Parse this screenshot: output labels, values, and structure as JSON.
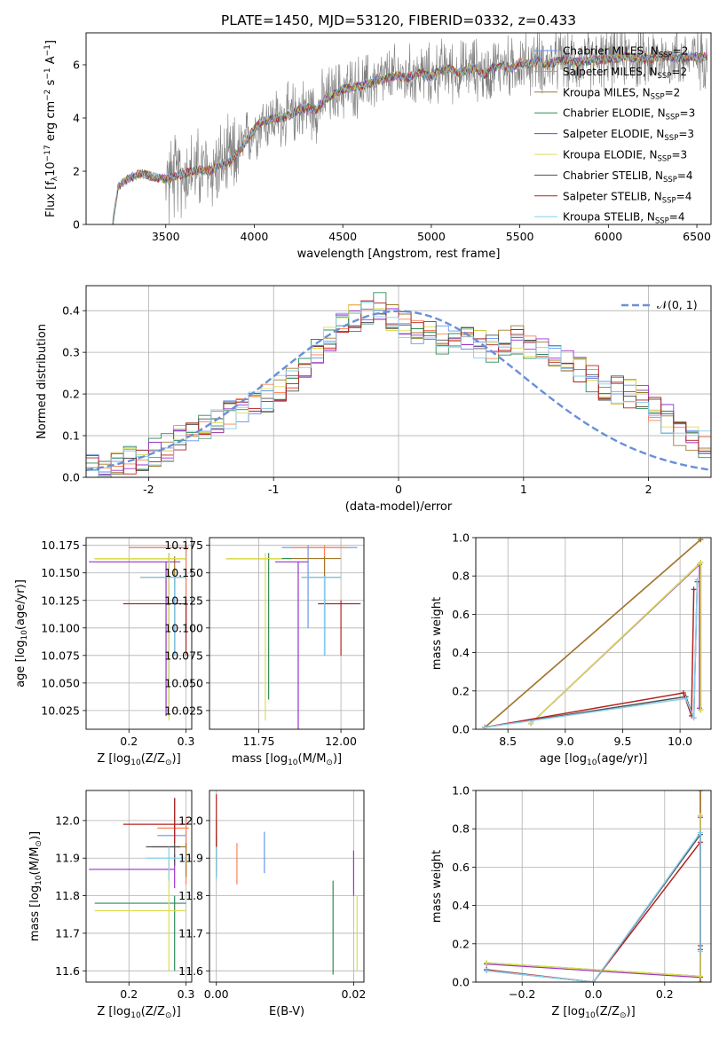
{
  "figure": {
    "title": "PLATE=1450, MJD=53120, FIBERID=0332, z=0.433",
    "series_colors": [
      "#6495ed",
      "#ff7f50",
      "#a07a2a",
      "#2e8b57",
      "#9932cc",
      "#dcdc55",
      "#505050",
      "#b22222",
      "#87ceeb"
    ]
  },
  "chart_data": [
    {
      "id": "spectrum",
      "type": "line",
      "xlabel": "wavelength [Angstrom, rest frame]",
      "ylabel": "Flux [f",
      "ylabel_parts": {
        "a": "Flux [f",
        "sub": "λ",
        "b": "10",
        "sup1": "−17",
        "c": " erg cm",
        "sup2": "−2",
        "d": " s",
        "sup3": "−1",
        "e": " A",
        "sup4": "−1",
        "f": "]"
      },
      "xlim": [
        3050,
        6580
      ],
      "ylim": [
        0,
        7.2
      ],
      "xticks": [
        3500,
        4000,
        4500,
        5000,
        5500,
        6000,
        6500
      ],
      "yticks": [
        0,
        2,
        4,
        6
      ],
      "legend": [
        {
          "name": "Chabrier MILES",
          "n": "2"
        },
        {
          "name": "Salpeter MILES",
          "n": "2"
        },
        {
          "name": "Kroupa MILES",
          "n": "2"
        },
        {
          "name": "Chabrier ELODIE",
          "n": "3"
        },
        {
          "name": "Salpeter ELODIE",
          "n": "3"
        },
        {
          "name": "Kroupa ELODIE",
          "n": "3"
        },
        {
          "name": "Chabrier STELIB",
          "n": "4"
        },
        {
          "name": "Salpeter STELIB",
          "n": "4"
        },
        {
          "name": "Kroupa STELIB",
          "n": "4"
        }
      ],
      "legend_sub": "SSP",
      "legend_prefix": "N",
      "model_curve": {
        "x": [
          3200,
          3230,
          3260,
          3300,
          3350,
          3400,
          3450,
          3500,
          3550,
          3600,
          3650,
          3700,
          3750,
          3800,
          3850,
          3900,
          3950,
          4000,
          4050,
          4100,
          4150,
          4200,
          4250,
          4300,
          4350,
          4400,
          4450,
          4500,
          4550,
          4600,
          4650,
          4700,
          4750,
          4800,
          4850,
          4900,
          4950,
          5000,
          5050,
          5100,
          5150,
          5200,
          5250,
          5300,
          5350,
          5400,
          5450,
          5500,
          5550,
          5600,
          5650,
          5700,
          5750,
          5800,
          5900,
          6000,
          6100,
          6200,
          6300,
          6400,
          6500
        ],
        "y": [
          0,
          1.4,
          1.6,
          1.75,
          1.9,
          1.85,
          1.75,
          1.7,
          1.8,
          1.9,
          2.0,
          2.05,
          2.0,
          2.2,
          2.3,
          2.6,
          3.1,
          3.6,
          3.9,
          3.95,
          4.0,
          4.1,
          4.3,
          4.4,
          4.3,
          4.7,
          4.9,
          5.1,
          5.15,
          5.2,
          5.3,
          5.4,
          5.5,
          5.6,
          5.5,
          5.6,
          5.7,
          5.55,
          5.8,
          5.85,
          5.7,
          5.8,
          5.9,
          5.6,
          5.9,
          6.0,
          5.85,
          6.1,
          6.0,
          6.2,
          6.0,
          6.1,
          6.2,
          6.1,
          6.15,
          6.2,
          6.3,
          6.2,
          6.3,
          6.25,
          6.3
        ]
      },
      "data_x_range": [
        3200,
        6560
      ]
    },
    {
      "id": "residuals",
      "type": "step",
      "xlabel": "(data-model)/error",
      "ylabel": "Normed distribution",
      "xlim": [
        -2.5,
        2.5
      ],
      "ylim": [
        0,
        0.46
      ],
      "xticks": [
        -2,
        -1,
        0,
        1,
        2
      ],
      "yticks": [
        0.0,
        0.1,
        0.2,
        0.3,
        0.4
      ],
      "legend": "𝒩(0, 1)",
      "gaussian": {
        "mu": 0,
        "sigma": 1
      },
      "bin_edges_start": -2.5,
      "bin_width": 0.1,
      "base_hist": [
        0.02,
        0.025,
        0.03,
        0.04,
        0.05,
        0.06,
        0.07,
        0.09,
        0.1,
        0.12,
        0.14,
        0.15,
        0.16,
        0.17,
        0.19,
        0.21,
        0.24,
        0.27,
        0.3,
        0.33,
        0.36,
        0.38,
        0.4,
        0.41,
        0.38,
        0.37,
        0.35,
        0.34,
        0.33,
        0.34,
        0.33,
        0.32,
        0.31,
        0.32,
        0.33,
        0.32,
        0.31,
        0.3,
        0.28,
        0.26,
        0.24,
        0.22,
        0.21,
        0.2,
        0.19,
        0.17,
        0.14,
        0.11,
        0.09,
        0.08
      ]
    },
    {
      "id": "age_vs_Z",
      "type": "errorbar",
      "xlabel": "Z [log",
      "ylabel": "age",
      "xlim": [
        0.125,
        0.31
      ],
      "ylim": [
        10.008,
        10.182
      ],
      "xticks": [
        0.2,
        0.3
      ],
      "yticks": [
        10.025,
        10.05,
        10.075,
        10.1,
        10.125,
        10.15,
        10.175
      ],
      "points": [
        {
          "x": 0.3,
          "y": 10.173,
          "xerr": [
            0.2,
            0.3
          ],
          "yerr": [
            10.1,
            10.175
          ]
        },
        {
          "x": 0.3,
          "y": 10.173,
          "xerr": [
            0.2,
            0.305
          ],
          "yerr": [
            10.1,
            10.175
          ]
        },
        {
          "x": 0.28,
          "y": 10.163,
          "xerr": [
            0.14,
            0.3
          ],
          "yerr": [
            10.075,
            10.165
          ]
        },
        {
          "x": 0.27,
          "y": 10.163,
          "xerr": [
            0.14,
            0.3
          ],
          "yerr": [
            10.02,
            10.168
          ]
        },
        {
          "x": 0.265,
          "y": 10.16,
          "xerr": [
            0.13,
            0.29
          ],
          "yerr": [
            10.02,
            10.16
          ]
        },
        {
          "x": 0.27,
          "y": 10.163,
          "xerr": [
            0.14,
            0.3
          ],
          "yerr": [
            10.016,
            10.168
          ]
        },
        {
          "x": 0.28,
          "y": 10.146,
          "xerr": [
            0.22,
            0.3
          ],
          "yerr": [
            10.075,
            10.147
          ]
        },
        {
          "x": 0.3,
          "y": 10.122,
          "xerr": [
            0.19,
            0.3
          ],
          "yerr": [
            10.075,
            10.125
          ]
        },
        {
          "x": 0.28,
          "y": 10.146,
          "xerr": [
            0.22,
            0.3
          ],
          "yerr": [
            10.075,
            10.147
          ]
        }
      ]
    },
    {
      "id": "age_vs_mass",
      "type": "errorbar",
      "xlabel": "mass [log",
      "ylabel": "",
      "xlim": [
        11.6,
        12.07
      ],
      "ylim": [
        10.008,
        10.182
      ],
      "xticks": [
        11.75,
        12.0
      ],
      "yticks": [
        10.025,
        10.05,
        10.075,
        10.1,
        10.125,
        10.15,
        10.175
      ],
      "points": [
        {
          "x": 11.9,
          "y": 10.173,
          "xerr": [
            11.82,
            12.05
          ],
          "yerr": [
            10.1,
            10.175
          ]
        },
        {
          "x": 11.95,
          "y": 10.173,
          "xerr": [
            11.85,
            12.02
          ],
          "yerr": [
            10.1,
            10.175
          ]
        },
        {
          "x": 11.95,
          "y": 10.163,
          "xerr": [
            11.65,
            12.0
          ],
          "yerr": [
            10.075,
            10.165
          ]
        },
        {
          "x": 11.78,
          "y": 10.163,
          "xerr": [
            11.65,
            11.85
          ],
          "yerr": [
            10.035,
            10.168
          ]
        },
        {
          "x": 11.87,
          "y": 10.16,
          "xerr": [
            11.8,
            11.9
          ],
          "yerr": [
            10.006,
            10.16
          ]
        },
        {
          "x": 11.77,
          "y": 10.163,
          "xerr": [
            11.65,
            11.82
          ],
          "yerr": [
            10.016,
            10.168
          ]
        },
        {
          "x": 11.95,
          "y": 10.146,
          "xerr": [
            11.88,
            12.0
          ],
          "yerr": [
            10.075,
            10.147
          ]
        },
        {
          "x": 12.0,
          "y": 10.122,
          "xerr": [
            11.93,
            12.06
          ],
          "yerr": [
            10.075,
            10.125
          ]
        },
        {
          "x": 11.95,
          "y": 10.146,
          "xerr": [
            11.88,
            12.0
          ],
          "yerr": [
            10.075,
            10.147
          ]
        }
      ]
    },
    {
      "id": "weight_vs_age",
      "type": "line",
      "xlabel": "age",
      "ylabel": "mass weight",
      "xlim": [
        8.22,
        10.27
      ],
      "ylim": [
        0,
        1
      ],
      "xticks": [
        8.5,
        9.0,
        9.5,
        10.0
      ],
      "yticks": [
        0.0,
        0.2,
        0.4,
        0.6,
        0.8,
        1.0
      ],
      "series": [
        {
          "x": [
            8.3,
            10.18
          ],
          "y": [
            0.01,
            0.99
          ]
        },
        {
          "x": [
            8.3,
            10.18
          ],
          "y": [
            0.01,
            0.99
          ]
        },
        {
          "x": [
            8.3,
            10.18
          ],
          "y": [
            0.01,
            0.99
          ]
        },
        {
          "x": [
            8.7,
            10.18,
            10.18
          ],
          "y": [
            0.03,
            0.87,
            0.1
          ]
        },
        {
          "x": [
            8.7,
            10.17,
            10.17
          ],
          "y": [
            0.03,
            0.86,
            0.11
          ]
        },
        {
          "x": [
            8.7,
            10.18,
            10.18
          ],
          "y": [
            0.03,
            0.87,
            0.1
          ]
        },
        {
          "x": [
            8.3,
            10.05,
            10.12,
            10.15
          ],
          "y": [
            0.01,
            0.17,
            0.06,
            0.77
          ]
        },
        {
          "x": [
            8.3,
            10.03,
            10.1,
            10.12
          ],
          "y": [
            0.01,
            0.19,
            0.07,
            0.73
          ]
        },
        {
          "x": [
            8.3,
            10.05,
            10.12,
            10.15
          ],
          "y": [
            0.01,
            0.16,
            0.06,
            0.78
          ]
        }
      ]
    },
    {
      "id": "mass_vs_Z",
      "type": "errorbar",
      "xlabel": "Z [log",
      "ylabel": "mass [log",
      "xlim": [
        0.125,
        0.31
      ],
      "ylim": [
        11.57,
        12.08
      ],
      "xticks": [
        0.2,
        0.3
      ],
      "yticks": [
        11.6,
        11.7,
        11.8,
        11.9,
        12.0
      ],
      "points": [
        {
          "x": 0.3,
          "y": 11.96,
          "xerr": [
            0.25,
            0.3
          ],
          "yerr": [
            11.93,
            12.0
          ]
        },
        {
          "x": 0.3,
          "y": 11.98,
          "xerr": [
            0.25,
            0.305
          ],
          "yerr": [
            11.83,
            12.01
          ]
        },
        {
          "x": 0.3,
          "y": 11.93,
          "xerr": [
            0.24,
            0.3
          ],
          "yerr": [
            11.85,
            11.94
          ]
        },
        {
          "x": 0.28,
          "y": 11.78,
          "xerr": [
            0.14,
            0.3
          ],
          "yerr": [
            11.6,
            11.8
          ]
        },
        {
          "x": 0.28,
          "y": 11.87,
          "xerr": [
            0.13,
            0.28
          ],
          "yerr": [
            11.82,
            11.91
          ]
        },
        {
          "x": 0.27,
          "y": 11.76,
          "xerr": [
            0.14,
            0.3
          ],
          "yerr": [
            11.6,
            11.9
          ]
        },
        {
          "x": 0.28,
          "y": 11.93,
          "xerr": [
            0.23,
            0.29
          ],
          "yerr": [
            11.88,
            12.06
          ]
        },
        {
          "x": 0.28,
          "y": 11.99,
          "xerr": [
            0.19,
            0.3
          ],
          "yerr": [
            11.94,
            12.06
          ]
        },
        {
          "x": 0.27,
          "y": 11.9,
          "xerr": [
            0.23,
            0.3
          ],
          "yerr": [
            11.84,
            11.93
          ]
        }
      ]
    },
    {
      "id": "mass_vs_ebv",
      "type": "errorbar",
      "xlabel": "E(B-V)",
      "ylabel": "",
      "xlim": [
        -0.001,
        0.0215
      ],
      "ylim": [
        11.57,
        12.08
      ],
      "xticks": [
        0.0,
        0.02
      ],
      "xtick_labels": [
        "0.00",
        "0.02"
      ],
      "yticks": [
        11.6,
        11.7,
        11.8,
        11.9,
        12.0
      ],
      "points": [
        {
          "x": 0.007,
          "y": 11.91,
          "xerr": [
            0.007,
            0.007
          ],
          "yerr": [
            11.86,
            11.97
          ]
        },
        {
          "x": 0.003,
          "y": 11.88,
          "xerr": [
            0.003,
            0.003
          ],
          "yerr": [
            11.83,
            11.94
          ]
        },
        {
          "x": 0.0,
          "y": 11.94,
          "xerr": [
            0,
            0
          ],
          "yerr": [
            11.87,
            12.0
          ]
        },
        {
          "x": 0.017,
          "y": 11.72,
          "xerr": [
            0.017,
            0.017
          ],
          "yerr": [
            11.59,
            11.84
          ]
        },
        {
          "x": 0.02,
          "y": 11.85,
          "xerr": [
            0.02,
            0.02
          ],
          "yerr": [
            11.8,
            11.92
          ]
        },
        {
          "x": 0.0205,
          "y": 11.72,
          "xerr": [
            0.0205,
            0.0205
          ],
          "yerr": [
            11.6,
            11.8
          ]
        },
        {
          "x": 0.0,
          "y": 11.9,
          "xerr": [
            0,
            0
          ],
          "yerr": [
            11.85,
            11.96
          ]
        },
        {
          "x": 0.0,
          "y": 12.0,
          "xerr": [
            0,
            0
          ],
          "yerr": [
            11.93,
            12.07
          ]
        },
        {
          "x": 0.0,
          "y": 11.88,
          "xerr": [
            0,
            0
          ],
          "yerr": [
            11.84,
            11.93
          ]
        }
      ]
    },
    {
      "id": "weight_vs_Z",
      "type": "line",
      "xlabel": "Z [log",
      "ylabel": "mass weight",
      "xlim": [
        -0.33,
        0.33
      ],
      "ylim": [
        0,
        1
      ],
      "xticks": [
        -0.2,
        0.0,
        0.2
      ],
      "xtick_labels": [
        "−0.2",
        "0.0",
        "0.2"
      ],
      "yticks": [
        0.0,
        0.2,
        0.4,
        0.6,
        0.8,
        1.0
      ],
      "series": [
        {
          "x": [
            0.3,
            0.3
          ],
          "y": [
            0.0,
            1.0
          ]
        },
        {
          "x": [
            0.3,
            0.3
          ],
          "y": [
            0.0,
            1.0
          ]
        },
        {
          "x": [
            0.3,
            0.3
          ],
          "y": [
            0.0,
            1.0
          ]
        },
        {
          "x": [
            -0.3,
            0.3,
            0.3
          ],
          "y": [
            0.1,
            0.03,
            0.87
          ]
        },
        {
          "x": [
            -0.3,
            0.3,
            0.3
          ],
          "y": [
            0.095,
            0.025,
            0.86
          ]
        },
        {
          "x": [
            -0.3,
            0.3,
            0.3
          ],
          "y": [
            0.1,
            0.03,
            0.87
          ]
        },
        {
          "x": [
            -0.3,
            0.0,
            0.3,
            0.3
          ],
          "y": [
            0.06,
            0.0,
            0.77,
            0.17
          ]
        },
        {
          "x": [
            -0.3,
            0.0,
            0.3,
            0.3
          ],
          "y": [
            0.065,
            0.0,
            0.73,
            0.19
          ]
        },
        {
          "x": [
            -0.3,
            0.0,
            0.3,
            0.3
          ],
          "y": [
            0.06,
            0.0,
            0.78,
            0.16
          ]
        }
      ]
    }
  ]
}
